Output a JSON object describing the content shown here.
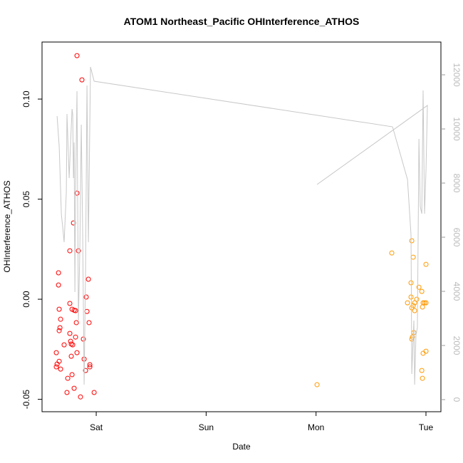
{
  "chart_data": {
    "type": "scatter",
    "title": "ATOM1 Northeast_Pacific OHInterference_ATHOS",
    "x_label": "Date",
    "y_label": "OHInterference_ATHOS",
    "xlim": [
      0.507,
      4.136
    ],
    "xticks": [
      {
        "value": 1,
        "label": "Sat"
      },
      {
        "value": 2,
        "label": "Sun"
      },
      {
        "value": 3,
        "label": "Mon"
      },
      {
        "value": 4,
        "label": "Tue"
      }
    ],
    "ylim": [
      -0.0562,
      0.1285
    ],
    "yticks": [
      {
        "value": -0.05,
        "label": "-0.05"
      },
      {
        "value": 0,
        "label": "0.00"
      },
      {
        "value": 0.05,
        "label": "0.05"
      },
      {
        "value": 0.1,
        "label": "0.10"
      }
    ],
    "y2lim": [
      -447,
      13211
    ],
    "y2ticks": [
      0,
      2000,
      4000,
      6000,
      8000,
      10000,
      12000
    ],
    "series": [
      {
        "type": "scatter",
        "color": "#ff0000",
        "x": [
          0.637,
          0.637,
          0.644,
          0.657,
          0.657,
          0.663,
          0.663,
          0.663,
          0.67,
          0.676,
          0.676,
          0.708,
          0.734,
          0.741,
          0.76,
          0.76,
          0.76,
          0.767,
          0.773,
          0.773,
          0.78,
          0.78,
          0.786,
          0.793,
          0.799,
          0.799,
          0.812,
          0.812,
          0.819,
          0.825,
          0.825,
          0.825,
          0.838,
          0.857,
          0.87,
          0.883,
          0.89,
          0.903,
          0.909,
          0.916,
          0.929,
          0.935,
          0.942,
          0.942,
          0.981
        ],
        "values": [
          -0.0267,
          -0.0338,
          -0.0324,
          0.0132,
          0.0071,
          -0.005,
          -0.0157,
          -0.031,
          -0.0142,
          -0.01,
          -0.0349,
          -0.0228,
          -0.0466,
          -0.0395,
          0.0242,
          -0.0021,
          -0.0171,
          -0.021,
          -0.0224,
          -0.0285,
          -0.005,
          -0.0377,
          -0.0228,
          0.0381,
          -0.0055,
          -0.0445,
          -0.0057,
          -0.0189,
          -0.0117,
          0.1217,
          0.053,
          -0.0267,
          0.0242,
          -0.0488,
          0.1096,
          -0.0199,
          -0.0299,
          -0.0356,
          0.0011,
          -0.0061,
          0.01,
          -0.0117,
          -0.0327,
          -0.0338,
          -0.0466
        ]
      },
      {
        "type": "scatter",
        "color": "#ff9900",
        "x": [
          3.009,
          3.689,
          3.832,
          3.864,
          3.864,
          3.871,
          3.871,
          3.871,
          3.877,
          3.884,
          3.884,
          3.89,
          3.897,
          3.897,
          3.916,
          3.936,
          3.962,
          3.962,
          3.968,
          3.968,
          3.974,
          3.974,
          3.987,
          4.0,
          4.0,
          4.0
        ],
        "values": [
          -0.0427,
          0.0231,
          -0.0018,
          0.0082,
          0.0011,
          0.0292,
          -0.0043,
          -0.0199,
          -0.0189,
          0.021,
          -0.0032,
          -0.0167,
          -0.0018,
          -0.0057,
          0,
          0.006,
          0.0039,
          -0.0356,
          -0.0039,
          -0.0395,
          -0.0018,
          -0.027,
          -0.0018,
          0.0174,
          -0.0018,
          -0.026
        ]
      },
      {
        "type": "line",
        "axis": "y2",
        "color": "#c8c8c8",
        "x": [
          0.644,
          0.663,
          0.683,
          0.696,
          0.708,
          0.728,
          0.734,
          0.754,
          0.767,
          0.78,
          0.786,
          0.793,
          0.799,
          0.806,
          0.812,
          0.825,
          0.838,
          0.851,
          0.864,
          0.877,
          0.89,
          0.903,
          0.916,
          0.929,
          0.935,
          0.948,
          0.981,
          3.696,
          3.832,
          3.864,
          3.871,
          3.89,
          3.897,
          3.909,
          3.922,
          3.936,
          3.948,
          3.962,
          3.974,
          3.987,
          4.0,
          4.013,
          3.009
        ],
        "values": [
          10474,
          9368,
          6842,
          6342,
          5816,
          7658,
          10553,
          8184,
          9500,
          10737,
          10553,
          8184,
          9500,
          3974,
          7632,
          11395,
          2921,
          5553,
          10158,
          6079,
          553,
          4763,
          11605,
          5816,
          7921,
          12289,
          11763,
          10079,
          8132,
          6079,
          947,
          2921,
          553,
          2395,
          2658,
          9632,
          7132,
          6868,
          11421,
          6868,
          8447,
          10868,
          7947
        ]
      }
    ]
  }
}
